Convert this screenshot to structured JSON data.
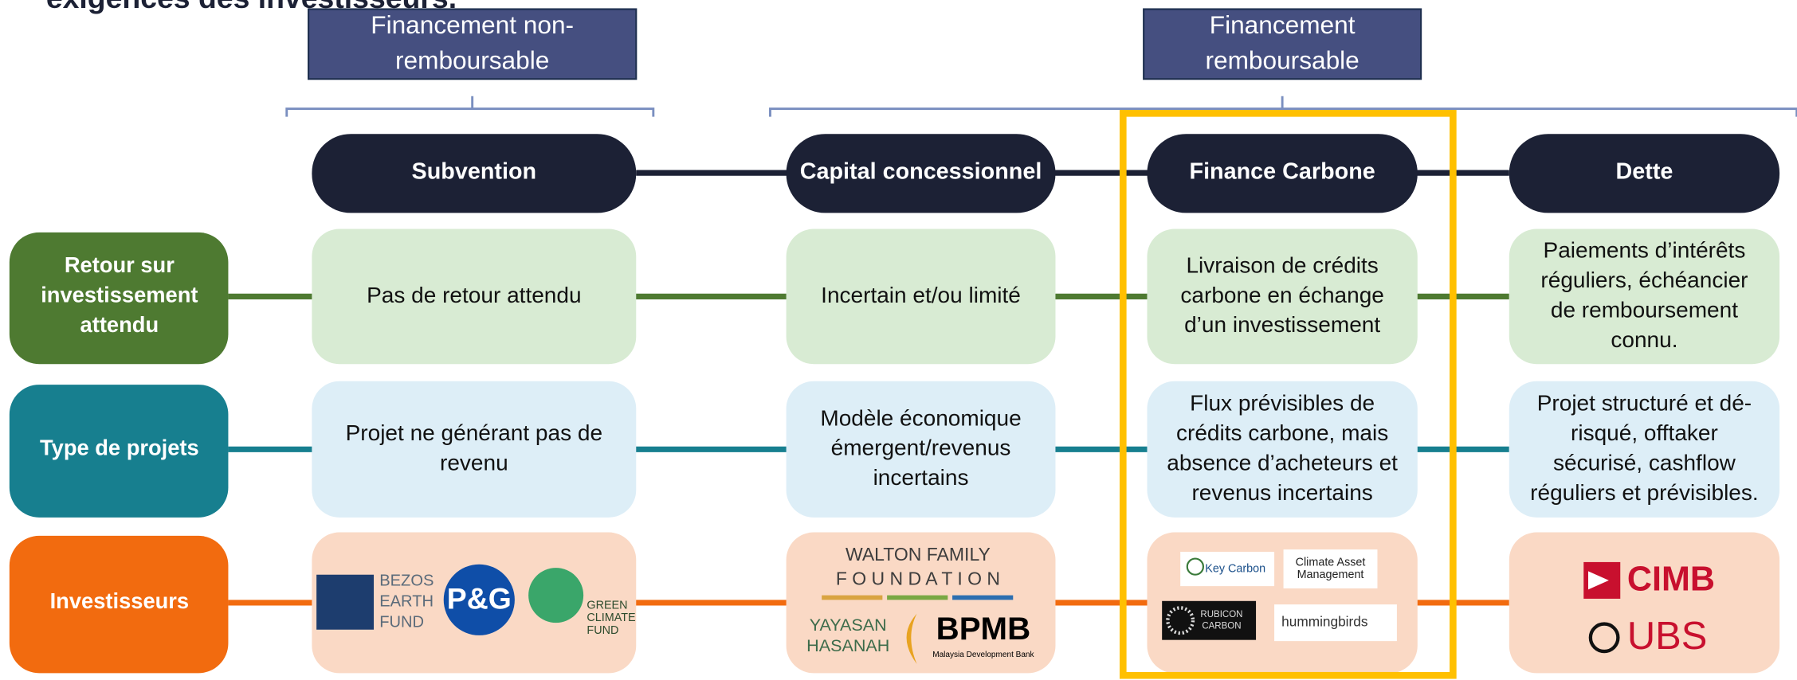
{
  "title": "exigences des investisseurs.",
  "groups": [
    {
      "lines": [
        "Financement non-",
        "remboursable"
      ]
    },
    {
      "lines": [
        "Financement",
        "remboursable"
      ]
    }
  ],
  "columns": [
    "Subvention",
    "Capital concessionnel",
    "Finance Carbone",
    "Dette"
  ],
  "rows": [
    {
      "label": [
        "Retour sur",
        "investissement",
        "attendu"
      ],
      "cells": [
        {
          "lines": [
            "Pas de retour attendu"
          ]
        },
        {
          "lines": [
            "Incertain et/ou limité"
          ]
        },
        {
          "lines": [
            "Livraison de crédits",
            "carbone en échange",
            "d’un investissement"
          ]
        },
        {
          "lines": [
            "Paiements d’intérêts",
            "réguliers, échéancier",
            "de remboursement",
            "connu."
          ]
        }
      ]
    },
    {
      "label": [
        "Type de projets"
      ],
      "cells": [
        {
          "lines": [
            "Projet ne générant pas de",
            "revenu"
          ]
        },
        {
          "lines": [
            "Modèle économique",
            "émergent/revenus",
            "incertains"
          ]
        },
        {
          "lines": [
            "Flux prévisibles de",
            "crédits carbone, mais",
            "absence d’acheteurs et",
            "revenus incertains"
          ]
        },
        {
          "lines": [
            "Projet structuré et dé-",
            "risqué, offtaker",
            "sécurisé, cashflow",
            "réguliers et prévisibles."
          ]
        }
      ]
    },
    {
      "label": [
        "Investisseurs"
      ],
      "cells": [
        {
          "logos": [
            {
              "lines": [
                "BEZOS",
                "EARTH",
                "FUND"
              ]
            },
            {
              "lines": [
                "P&G"
              ]
            },
            {
              "lines": [
                "GREEN",
                "CLIMATE",
                "FUND"
              ]
            }
          ]
        },
        {
          "logos": [
            {
              "lines": [
                "WALTON FAMILY",
                "F O U N D A T I O N"
              ]
            },
            {
              "lines": [
                "YAYASAN",
                "HASANAH"
              ]
            },
            {
              "lines": [
                "BPMB",
                "Malaysia Development Bank"
              ]
            }
          ]
        },
        {
          "logos": [
            {
              "lines": [
                "Key Carbon"
              ]
            },
            {
              "lines": [
                "Climate Asset",
                "Management"
              ]
            },
            {
              "lines": [
                "RUBICON",
                "CARBON"
              ]
            },
            {
              "lines": [
                "hummingbirds"
              ]
            }
          ]
        },
        {
          "logos": [
            {
              "lines": [
                "CIMB"
              ]
            },
            {
              "lines": [
                "UBS"
              ]
            }
          ]
        }
      ]
    }
  ]
}
